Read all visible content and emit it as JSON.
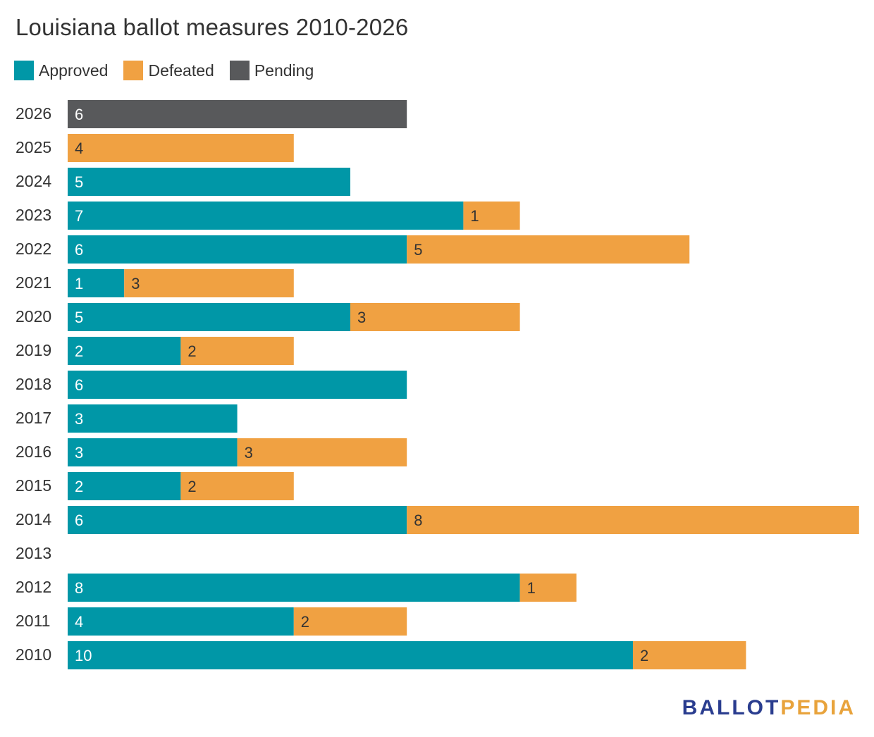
{
  "chart_data": {
    "type": "bar",
    "orientation": "horizontal",
    "stacked": true,
    "title": "Louisiana ballot measures 2010-2026",
    "categories": [
      "2026",
      "2025",
      "2024",
      "2023",
      "2022",
      "2021",
      "2020",
      "2019",
      "2018",
      "2017",
      "2016",
      "2015",
      "2014",
      "2013",
      "2012",
      "2011",
      "2010"
    ],
    "series": [
      {
        "name": "Approved",
        "color": "#0097a7",
        "values": [
          0,
          0,
          5,
          7,
          6,
          1,
          5,
          2,
          6,
          3,
          3,
          2,
          6,
          0,
          8,
          4,
          10
        ]
      },
      {
        "name": "Defeated",
        "color": "#f0a142",
        "values": [
          0,
          4,
          0,
          1,
          5,
          3,
          3,
          2,
          0,
          0,
          3,
          2,
          8,
          0,
          1,
          2,
          2
        ]
      },
      {
        "name": "Pending",
        "color": "#58595b",
        "values": [
          6,
          0,
          0,
          0,
          0,
          0,
          0,
          0,
          0,
          0,
          0,
          0,
          0,
          0,
          0,
          0,
          0
        ]
      }
    ],
    "legend_position": "top-left",
    "grid": false
  },
  "legend": [
    {
      "label": "Approved",
      "color": "#0097a7"
    },
    {
      "label": "Defeated",
      "color": "#f0a142"
    },
    {
      "label": "Pending",
      "color": "#58595b"
    }
  ],
  "branding": {
    "part1": "BALLOT",
    "part2": "PEDIA"
  }
}
